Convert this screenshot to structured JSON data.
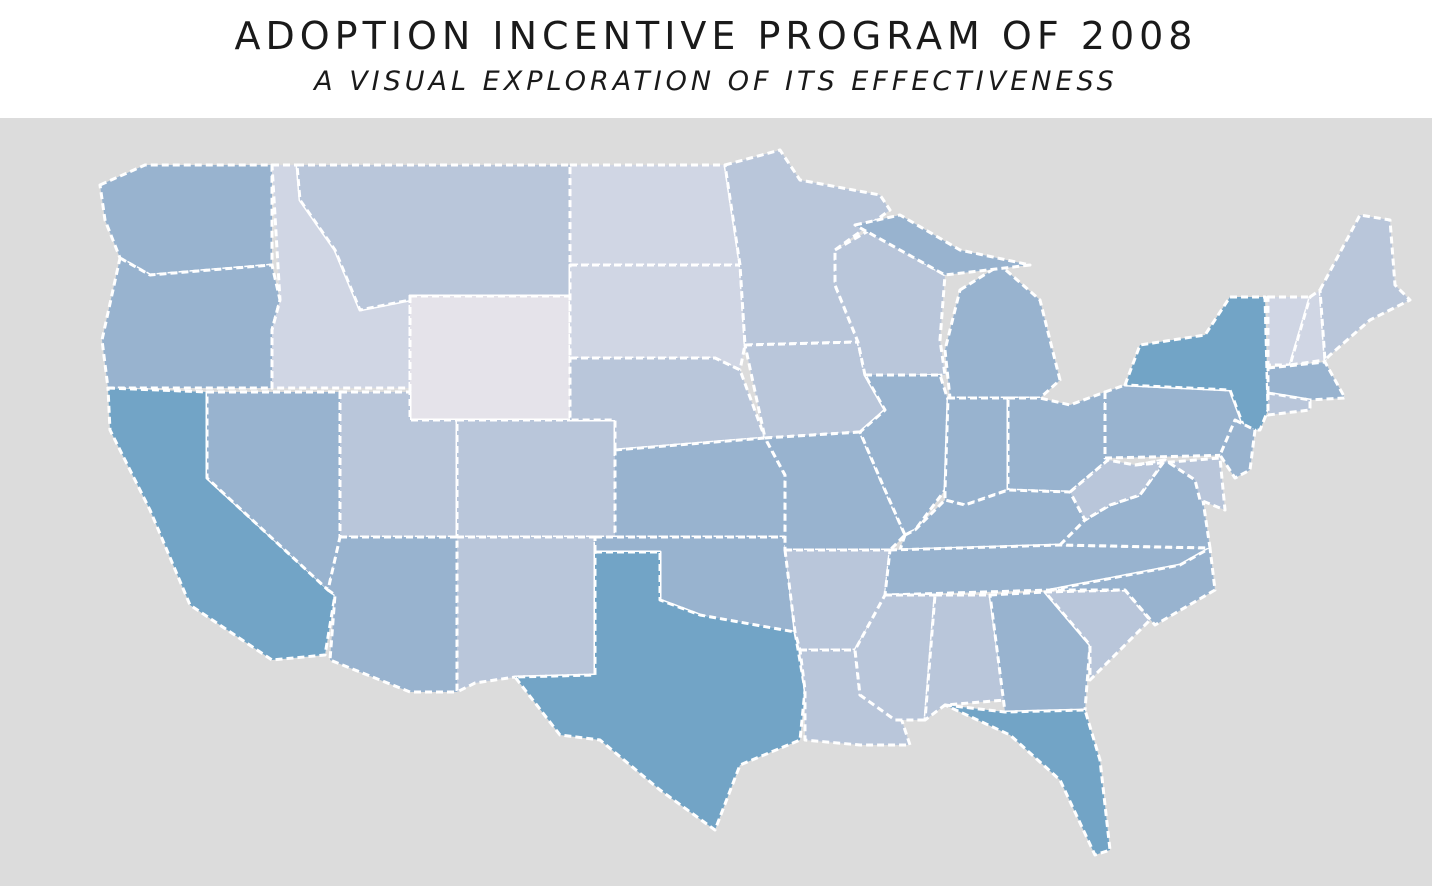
{
  "header": {
    "title": "ADOPTION INCENTIVE PROGRAM OF 2008",
    "subtitle": "A VISUAL EXPLORATION OF ITS EFFECTIVENESS"
  },
  "colors": {
    "background": "#dcdcdc",
    "border": "#ffffff",
    "tiers": [
      "#e5e3ea",
      "#d0d6e4",
      "#b9c6da",
      "#98b3cf",
      "#72a4c6"
    ]
  },
  "map": {
    "type": "choropleth",
    "states": [
      {
        "id": "WA",
        "tier": 4
      },
      {
        "id": "OR",
        "tier": 4
      },
      {
        "id": "CA",
        "tier": 5
      },
      {
        "id": "ID",
        "tier": 2
      },
      {
        "id": "NV",
        "tier": 4
      },
      {
        "id": "MT",
        "tier": 3
      },
      {
        "id": "WY",
        "tier": 1
      },
      {
        "id": "UT",
        "tier": 3
      },
      {
        "id": "CO",
        "tier": 3
      },
      {
        "id": "AZ",
        "tier": 4
      },
      {
        "id": "NM",
        "tier": 3
      },
      {
        "id": "ND",
        "tier": 2
      },
      {
        "id": "SD",
        "tier": 2
      },
      {
        "id": "NE",
        "tier": 3
      },
      {
        "id": "KS",
        "tier": 4
      },
      {
        "id": "OK",
        "tier": 4
      },
      {
        "id": "TX",
        "tier": 5
      },
      {
        "id": "MN",
        "tier": 3
      },
      {
        "id": "IA",
        "tier": 3
      },
      {
        "id": "MO",
        "tier": 4
      },
      {
        "id": "AR",
        "tier": 3
      },
      {
        "id": "LA",
        "tier": 3
      },
      {
        "id": "WI",
        "tier": 3
      },
      {
        "id": "IL",
        "tier": 4
      },
      {
        "id": "MI",
        "tier": 4
      },
      {
        "id": "MIU",
        "tier": 4
      },
      {
        "id": "IN",
        "tier": 4
      },
      {
        "id": "OH",
        "tier": 4
      },
      {
        "id": "KY",
        "tier": 4
      },
      {
        "id": "TN",
        "tier": 4
      },
      {
        "id": "MS",
        "tier": 3
      },
      {
        "id": "AL",
        "tier": 3
      },
      {
        "id": "GA",
        "tier": 4
      },
      {
        "id": "FL",
        "tier": 5
      },
      {
        "id": "SC",
        "tier": 3
      },
      {
        "id": "NC",
        "tier": 4
      },
      {
        "id": "VA",
        "tier": 4
      },
      {
        "id": "WV",
        "tier": 3
      },
      {
        "id": "PA",
        "tier": 4
      },
      {
        "id": "NY",
        "tier": 5
      },
      {
        "id": "NJ",
        "tier": 4
      },
      {
        "id": "MD",
        "tier": 3
      },
      {
        "id": "VT",
        "tier": 2
      },
      {
        "id": "NH",
        "tier": 2
      },
      {
        "id": "ME",
        "tier": 3
      },
      {
        "id": "MA",
        "tier": 4
      },
      {
        "id": "CT",
        "tier": 3
      }
    ]
  }
}
